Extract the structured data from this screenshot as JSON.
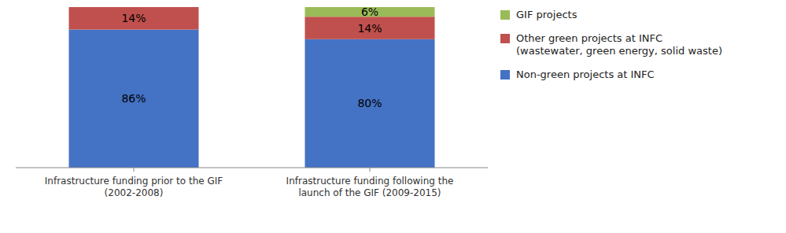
{
  "chart_data": {
    "type": "bar",
    "stacked": true,
    "categories": [
      "Infrastructure funding prior to the GIF\n(2002-2008)",
      "Infrastructure funding following the\nlaunch of the GIF (2009-2015)"
    ],
    "series": [
      {
        "name": "Non-green projects at INFC",
        "color": "#4472C4",
        "values": [
          86,
          80
        ],
        "value_labels": [
          "86%",
          "80%"
        ]
      },
      {
        "name": "Other green projects at INFC\n(wastewater, green energy, solid waste)",
        "color": "#C0504D",
        "values": [
          14,
          14
        ],
        "value_labels": [
          "14%",
          "14%"
        ]
      },
      {
        "name": "GIF projects",
        "color": "#9BBB59",
        "values": [
          0,
          6
        ],
        "value_labels": [
          null,
          "6%"
        ]
      }
    ],
    "ylim": [
      0,
      100
    ],
    "data_labels": true,
    "tick_labels": "x",
    "grid": false,
    "legend": "right"
  }
}
